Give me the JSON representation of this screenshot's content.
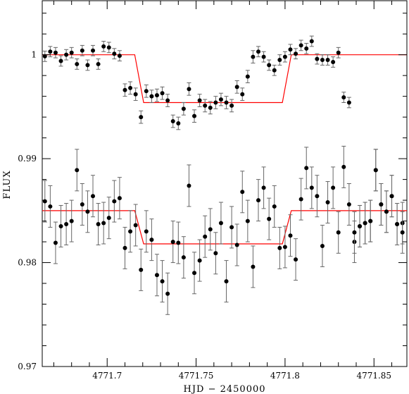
{
  "chart_data": {
    "type": "scatter",
    "title": "",
    "xlabel": "HJD − 2450000",
    "ylabel": "FLUX",
    "xlim": [
      4771.6635,
      4771.8685
    ],
    "ylim": [
      0.97,
      1.0052
    ],
    "x_ticks": [
      {
        "value": 4771.7,
        "label": "4771.7"
      },
      {
        "value": 4771.75,
        "label": "4771.75"
      },
      {
        "value": 4771.8,
        "label": "4771.8"
      },
      {
        "value": 4771.85,
        "label": "4771.85"
      }
    ],
    "y_ticks": [
      {
        "value": 0.97,
        "label": "0.97"
      },
      {
        "value": 0.98,
        "label": "0.98"
      },
      {
        "value": 0.99,
        "label": "0.99"
      },
      {
        "value": 1.0,
        "label": "1"
      }
    ],
    "grid": false,
    "colors": {
      "points": "#000000",
      "errorbars": "#666666",
      "model": "#ff0000"
    },
    "series": [
      {
        "kind": "points",
        "x": [
          4771.665,
          4771.668,
          4771.671,
          4771.674,
          4771.677,
          4771.68,
          4771.683,
          4771.686,
          4771.689,
          4771.692,
          4771.695,
          4771.698,
          4771.701,
          4771.704,
          4771.707,
          4771.71,
          4771.713,
          4771.716,
          4771.719,
          4771.722,
          4771.725,
          4771.728,
          4771.731,
          4771.734,
          4771.737,
          4771.74,
          4771.743,
          4771.746,
          4771.749,
          4771.752,
          4771.755,
          4771.758,
          4771.761,
          4771.764,
          4771.767,
          4771.77,
          4771.773,
          4771.776,
          4771.779,
          4771.782,
          4771.785,
          4771.788,
          4771.791,
          4771.794,
          4771.797,
          4771.8,
          4771.803,
          4771.806,
          4771.809,
          4771.812,
          4771.815,
          4771.818,
          4771.821,
          4771.824,
          4771.827,
          4771.83,
          4771.833,
          4771.836,
          4771.839,
          4771.842,
          4771.845,
          4771.848,
          4771.851,
          4771.854,
          4771.857,
          4771.86,
          4771.863,
          4771.866
        ],
        "y": [
          0.99985,
          1.0003,
          1.0002,
          0.9994,
          1.0,
          1.0002,
          0.9991,
          1.0004,
          0.999,
          1.0004,
          0.9991,
          1.0008,
          1.0007,
          1.0001,
          0.9999,
          0.9966,
          0.9968,
          0.9962,
          0.994,
          0.9965,
          0.996,
          0.9961,
          0.9963,
          0.9956,
          0.9936,
          0.9934,
          0.9948,
          0.9967,
          0.9941,
          0.9956,
          0.9951,
          0.9949,
          0.9954,
          0.9957,
          0.9954,
          0.9951,
          0.9969,
          0.9962,
          0.9979,
          0.9998,
          1.0003,
          0.9998,
          0.999,
          0.9985,
          0.9995,
          0.9998,
          1.0005,
          1.0001,
          1.0009,
          1.0006,
          1.0013,
          0.9996,
          0.9995,
          0.9995,
          0.9993,
          1.0002,
          0.9959,
          0.9954,
          0.982,
          0.9835,
          0.9838,
          0.984,
          0.9889,
          0.9856,
          0.9849,
          0.9864,
          0.9837,
          0.9838
        ],
        "yerr": [
          0.0005,
          0.0005,
          0.0005,
          0.0005,
          0.0005,
          0.0005,
          0.0005,
          0.0005,
          0.0005,
          0.0005,
          0.0005,
          0.0005,
          0.0005,
          0.0005,
          0.0005,
          0.0006,
          0.0006,
          0.0006,
          0.0006,
          0.0006,
          0.0006,
          0.0006,
          0.0006,
          0.0006,
          0.0006,
          0.0006,
          0.0006,
          0.0006,
          0.0006,
          0.0006,
          0.0006,
          0.0006,
          0.0006,
          0.0006,
          0.0006,
          0.0006,
          0.0006,
          0.0006,
          0.0006,
          0.0006,
          0.0005,
          0.0005,
          0.0005,
          0.0005,
          0.0005,
          0.0005,
          0.0005,
          0.0005,
          0.0005,
          0.0005,
          0.0005,
          0.0005,
          0.0005,
          0.0005,
          0.0005,
          0.0005,
          0.0005,
          0.0005,
          0.002,
          0.002,
          0.002,
          0.002,
          0.002,
          0.002,
          0.002,
          0.002,
          0.002,
          0.002
        ]
      },
      {
        "kind": "points",
        "x": [
          4771.665,
          4771.668,
          4771.671,
          4771.674,
          4771.677,
          4771.68,
          4771.683,
          4771.686,
          4771.689,
          4771.692,
          4771.695,
          4771.698,
          4771.701,
          4771.704,
          4771.707,
          4771.71,
          4771.713,
          4771.716,
          4771.719,
          4771.722,
          4771.725,
          4771.728,
          4771.731,
          4771.734,
          4771.737,
          4771.74,
          4771.743,
          4771.746,
          4771.749,
          4771.752,
          4771.755,
          4771.758,
          4771.761,
          4771.764,
          4771.767,
          4771.77,
          4771.773,
          4771.776,
          4771.779,
          4771.782,
          4771.785,
          4771.788,
          4771.791,
          4771.794,
          4771.797,
          4771.8,
          4771.803,
          4771.806,
          4771.809,
          4771.812,
          4771.815,
          4771.818,
          4771.821,
          4771.824,
          4771.827,
          4771.83,
          4771.833,
          4771.836,
          4771.839,
          4771.842,
          4771.845,
          4771.848,
          4771.851,
          4771.854,
          4771.857,
          4771.86,
          4771.863,
          4771.866
        ],
        "y": [
          0.9859,
          0.9854,
          0.9819,
          0.9835,
          0.9837,
          0.984,
          0.9889,
          0.9856,
          0.9849,
          0.9864,
          0.9837,
          0.9838,
          0.9843,
          0.9859,
          0.9862,
          0.9814,
          0.983,
          0.9836,
          0.9793,
          0.983,
          0.9822,
          0.9788,
          0.9782,
          0.977,
          0.982,
          0.9819,
          0.9805,
          0.9874,
          0.979,
          0.9802,
          0.9825,
          0.9832,
          0.9809,
          0.9838,
          0.9782,
          0.9834,
          0.9817,
          0.9868,
          0.984,
          0.9796,
          0.986,
          0.9872,
          0.9842,
          0.9854,
          0.9814,
          0.9815,
          0.9826,
          0.9803,
          0.9861,
          0.9891,
          0.9872,
          0.9864,
          0.9816,
          0.9858,
          0.9872,
          0.9829,
          0.9892,
          0.9856,
          0.9829,
          0.9835,
          0.9838,
          0.984,
          0.9889,
          0.9856,
          0.9849,
          0.9864,
          0.9837,
          0.9829
        ],
        "yerr": [
          0.002,
          0.002,
          0.002,
          0.002,
          0.002,
          0.002,
          0.002,
          0.002,
          0.002,
          0.002,
          0.002,
          0.002,
          0.002,
          0.002,
          0.002,
          0.002,
          0.002,
          0.002,
          0.002,
          0.002,
          0.002,
          0.002,
          0.002,
          0.002,
          0.002,
          0.002,
          0.002,
          0.002,
          0.002,
          0.002,
          0.002,
          0.002,
          0.002,
          0.002,
          0.002,
          0.002,
          0.002,
          0.002,
          0.002,
          0.002,
          0.002,
          0.002,
          0.002,
          0.002,
          0.002,
          0.002,
          0.002,
          0.002,
          0.002,
          0.002,
          0.002,
          0.002,
          0.002,
          0.002,
          0.002,
          0.002,
          0.002,
          0.002,
          0.002,
          0.002,
          0.002,
          0.002,
          0.002,
          0.002,
          0.002,
          0.002,
          0.002,
          0.002
        ]
      },
      {
        "kind": "model",
        "x": [
          4771.6635,
          4771.7155,
          4771.7205,
          4771.7985,
          4771.8035,
          4771.8685
        ],
        "y": [
          1.0,
          1.0,
          0.9954,
          0.9954,
          1.0,
          1.0
        ]
      },
      {
        "kind": "model",
        "x": [
          4771.6635,
          4771.7155,
          4771.7205,
          4771.7985,
          4771.8035,
          4771.8685
        ],
        "y": [
          0.985,
          0.985,
          0.9818,
          0.9818,
          0.985,
          0.985
        ]
      }
    ]
  }
}
